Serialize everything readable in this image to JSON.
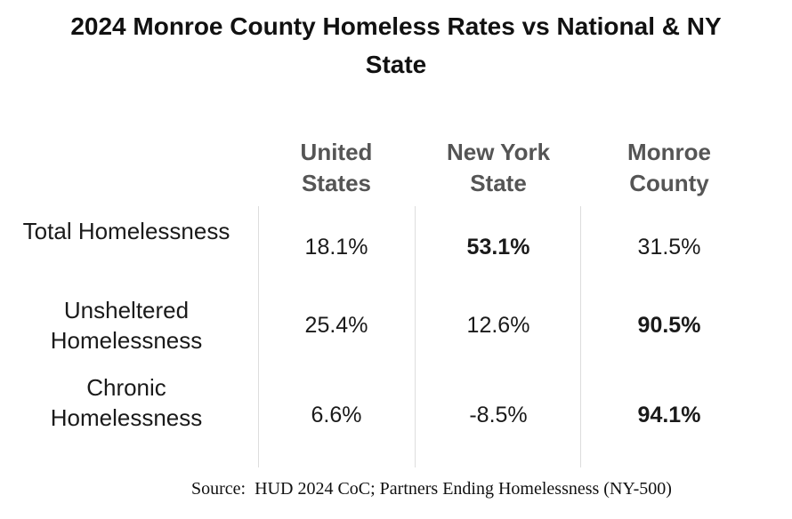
{
  "chart_data": {
    "type": "table",
    "title": "2024 Monroe County Homeless Rates vs National & NY State",
    "title_lines": [
      "2024 Monroe County Homeless Rates vs National & NY",
      "State"
    ],
    "columns": [
      {
        "id": "us",
        "lines": [
          "United",
          "States"
        ],
        "label": "United States"
      },
      {
        "id": "ny",
        "lines": [
          "New York",
          "State"
        ],
        "label": "New York State"
      },
      {
        "id": "monroe",
        "lines": [
          "Monroe",
          "County"
        ],
        "label": "Monroe County"
      }
    ],
    "rows": [
      {
        "id": "total",
        "label": "Total Homelessness",
        "label_lines": [
          "Total Homelessness"
        ],
        "values": [
          18.1,
          53.1,
          31.5
        ],
        "display": [
          "18.1%",
          "53.1%",
          "31.5%"
        ],
        "bold_index": 1
      },
      {
        "id": "unsheltered",
        "label": "Unsheltered Homelessness",
        "label_lines": [
          "Unsheltered",
          "Homelessness"
        ],
        "values": [
          25.4,
          12.6,
          90.5
        ],
        "display": [
          "25.4%",
          "12.6%",
          "90.5%"
        ],
        "bold_index": 2
      },
      {
        "id": "chronic",
        "label": "Chronic Homelessness",
        "label_lines": [
          "Chronic",
          "Homelessness"
        ],
        "values": [
          6.6,
          -8.5,
          94.1
        ],
        "display": [
          "6.6%",
          "-8.5%",
          "94.1%"
        ],
        "bold_index": 2
      }
    ],
    "source": "Source:  HUD 2024 CoC; Partners Ending Homelessness (NY-500)"
  },
  "colors": {
    "title": "#111111",
    "header": "#555555",
    "text": "#1a1a1a",
    "divider": "#dddddd"
  }
}
